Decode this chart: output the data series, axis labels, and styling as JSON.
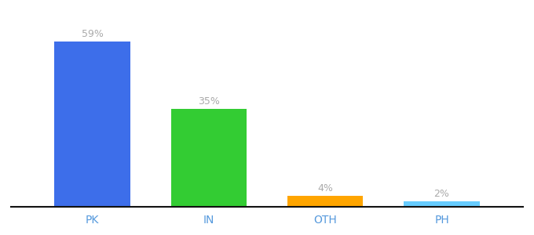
{
  "categories": [
    "PK",
    "IN",
    "OTH",
    "PH"
  ],
  "values": [
    59,
    35,
    4,
    2
  ],
  "bar_colors": [
    "#3d6eea",
    "#33cc33",
    "#ffa500",
    "#66ccff"
  ],
  "labels": [
    "59%",
    "35%",
    "4%",
    "2%"
  ],
  "ylim": [
    0,
    68
  ],
  "background_color": "#ffffff",
  "label_color": "#aaaaaa",
  "xlabel_color": "#5599dd",
  "bar_width": 0.65
}
